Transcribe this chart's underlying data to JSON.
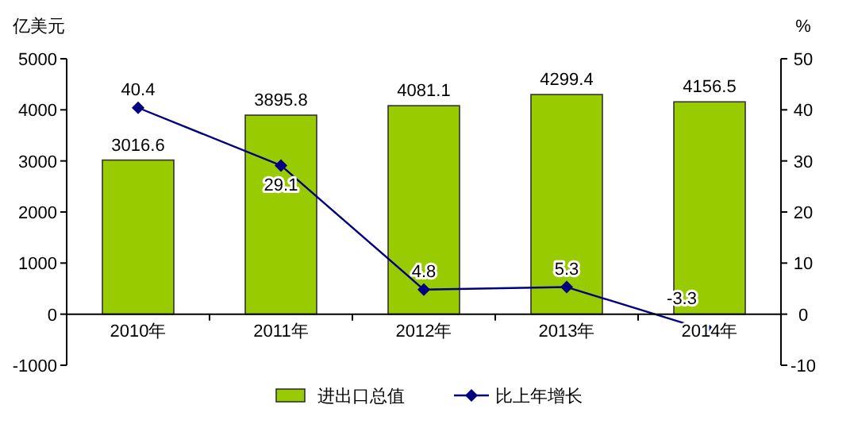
{
  "chart_data": {
    "type": "bar",
    "categories": [
      "2010年",
      "2011年",
      "2012年",
      "2013年",
      "2014年"
    ],
    "series": [
      {
        "name": "进出口总值",
        "color": "#99cc00",
        "values": [
          3016.6,
          3895.8,
          4081.1,
          4299.4,
          4156.5
        ]
      },
      {
        "name": "比上年增长",
        "type": "line",
        "axis": "y2",
        "color": "#000080",
        "marker": "diamond",
        "values": [
          40.4,
          29.1,
          4.8,
          5.3,
          -3.3
        ]
      }
    ],
    "ylabel": "亿美元",
    "y2label": "%",
    "ylim": [
      -1000,
      5000
    ],
    "yticks": [
      -1000,
      0,
      1000,
      2000,
      3000,
      4000,
      5000
    ],
    "y2lim": [
      -10,
      50
    ],
    "y2ticks": [
      -10,
      0,
      10,
      20,
      30,
      40,
      50
    ],
    "data_labels": true,
    "legend": "bottom",
    "grid": false
  }
}
